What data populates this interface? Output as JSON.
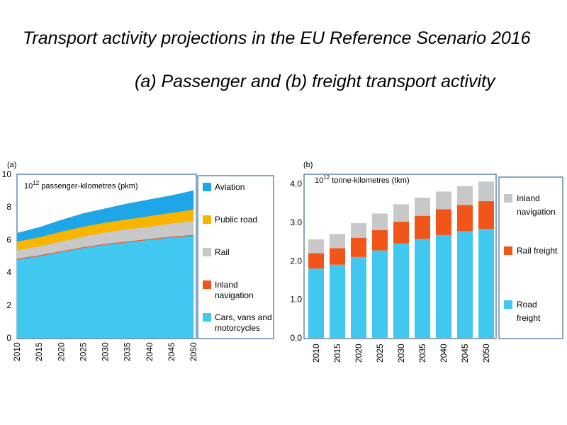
{
  "title": "Transport activity projections in the EU Reference Scenario 2016",
  "subtitle": "(a) Passenger and (b) freight transport activity",
  "chart_data": [
    {
      "type": "area",
      "panel_label": "(a)",
      "unit_label": "10",
      "unit_sup": "12",
      "unit_rest": " passenger-kilometres (pkm)",
      "x": [
        2010,
        2015,
        2020,
        2025,
        2030,
        2035,
        2040,
        2045,
        2050
      ],
      "ylim": [
        0,
        10
      ],
      "yticks": [
        "0",
        "2",
        "4",
        "6",
        "8",
        "10"
      ],
      "grid": false,
      "legend_position": "right",
      "series": [
        {
          "name": "Cars, vans and motorcycles",
          "color": "#41c8f0",
          "values": [
            4.8,
            5.0,
            5.25,
            5.5,
            5.7,
            5.85,
            6.0,
            6.15,
            6.25
          ]
        },
        {
          "name": "Inland navigation",
          "color": "#f2551a",
          "values": [
            0.05,
            0.05,
            0.05,
            0.05,
            0.05,
            0.05,
            0.05,
            0.05,
            0.05
          ]
        },
        {
          "name": "Rail",
          "color": "#c8c8c8",
          "values": [
            0.5,
            0.55,
            0.6,
            0.65,
            0.7,
            0.75,
            0.75,
            0.8,
            0.85
          ]
        },
        {
          "name": "Public road",
          "color": "#f7b500",
          "values": [
            0.55,
            0.55,
            0.6,
            0.6,
            0.6,
            0.6,
            0.65,
            0.65,
            0.7
          ]
        },
        {
          "name": "Aviation",
          "color": "#1ea6e8",
          "values": [
            0.5,
            0.6,
            0.7,
            0.8,
            0.85,
            0.95,
            1.0,
            1.05,
            1.15
          ]
        }
      ],
      "legend": [
        "Aviation",
        "Public road",
        "Rail",
        "Inland navigation",
        "Cars, vans and motorcycles"
      ]
    },
    {
      "type": "bar",
      "stacked": true,
      "panel_label": "(b)",
      "unit_label": "10",
      "unit_sup": "12",
      "unit_rest": " tonne-kilometres (tkm)",
      "categories": [
        "2010",
        "2015",
        "2020",
        "2025",
        "2030",
        "2035",
        "2040",
        "2045",
        "2050"
      ],
      "ylim": [
        0,
        4.25
      ],
      "yticks": [
        "0.0",
        "1.0",
        "2.0",
        "3.0",
        "4.0"
      ],
      "grid": false,
      "legend_position": "right",
      "series": [
        {
          "name": "Road freight",
          "color": "#41c8f0",
          "values": [
            1.8,
            1.9,
            2.1,
            2.27,
            2.45,
            2.57,
            2.67,
            2.77,
            2.83
          ]
        },
        {
          "name": "Rail freight",
          "color": "#f2551a",
          "values": [
            0.4,
            0.43,
            0.5,
            0.53,
            0.57,
            0.6,
            0.67,
            0.68,
            0.72
          ]
        },
        {
          "name": "Inland navigation",
          "color": "#c8c8c8",
          "values": [
            0.36,
            0.37,
            0.38,
            0.43,
            0.45,
            0.47,
            0.46,
            0.49,
            0.51
          ]
        }
      ],
      "legend": [
        "Inland navigation",
        "Rail freight",
        "Road freight"
      ]
    }
  ]
}
